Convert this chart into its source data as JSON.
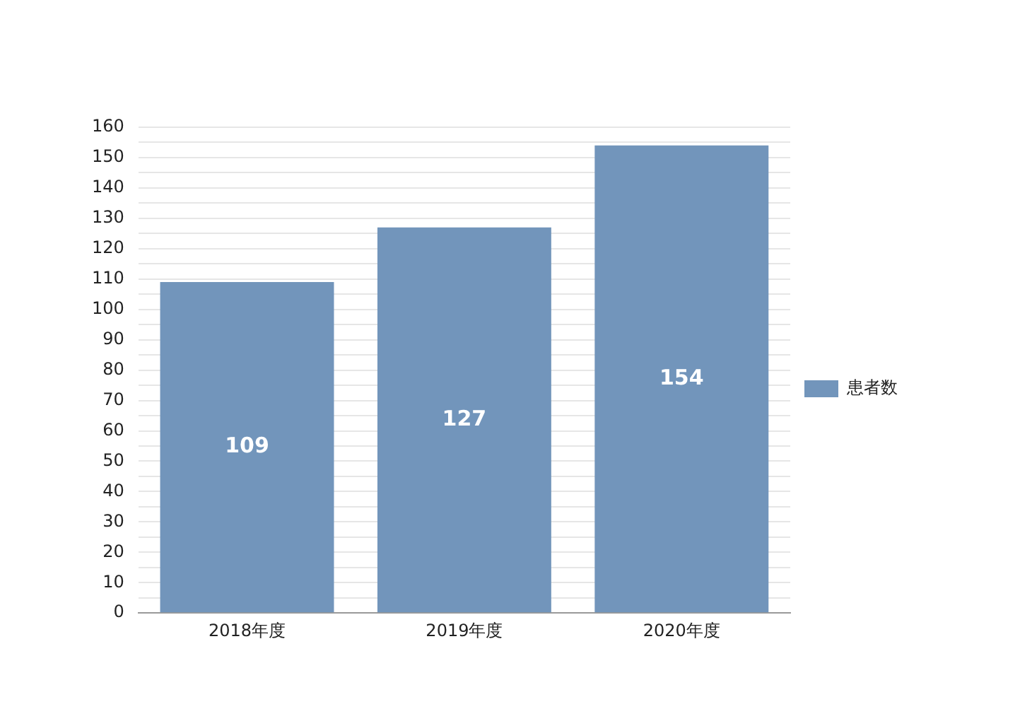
{
  "chart_data": {
    "type": "bar",
    "categories": [
      "2018年度",
      "2019年度",
      "2020年度"
    ],
    "series": [
      {
        "name": "患者数",
        "color": "#7295bb",
        "values": [
          109,
          127,
          154
        ]
      }
    ],
    "ylim": [
      0,
      160
    ],
    "yticks": [
      0,
      {
        "value": 5,
        "label": null
      },
      10,
      {
        "value": 15,
        "label": null
      },
      20,
      {
        "value": 25,
        "label": null
      },
      30,
      {
        "value": 35,
        "label": null
      },
      40,
      {
        "value": 45,
        "label": null
      },
      50,
      {
        "value": 55,
        "label": null
      },
      60,
      {
        "value": 65,
        "label": null
      },
      70,
      {
        "value": 75,
        "label": null
      },
      80,
      {
        "value": 85,
        "label": null
      },
      90,
      {
        "value": 95,
        "label": null
      },
      100,
      {
        "value": 105,
        "label": null
      },
      110,
      {
        "value": 115,
        "label": null
      },
      120,
      {
        "value": 125,
        "label": null
      },
      130,
      {
        "value": 135,
        "label": null
      },
      140,
      {
        "value": 145,
        "label": null
      },
      150,
      {
        "value": 155,
        "label": null
      },
      160
    ],
    "grid": "y",
    "legend": "right",
    "data_labels": true
  }
}
